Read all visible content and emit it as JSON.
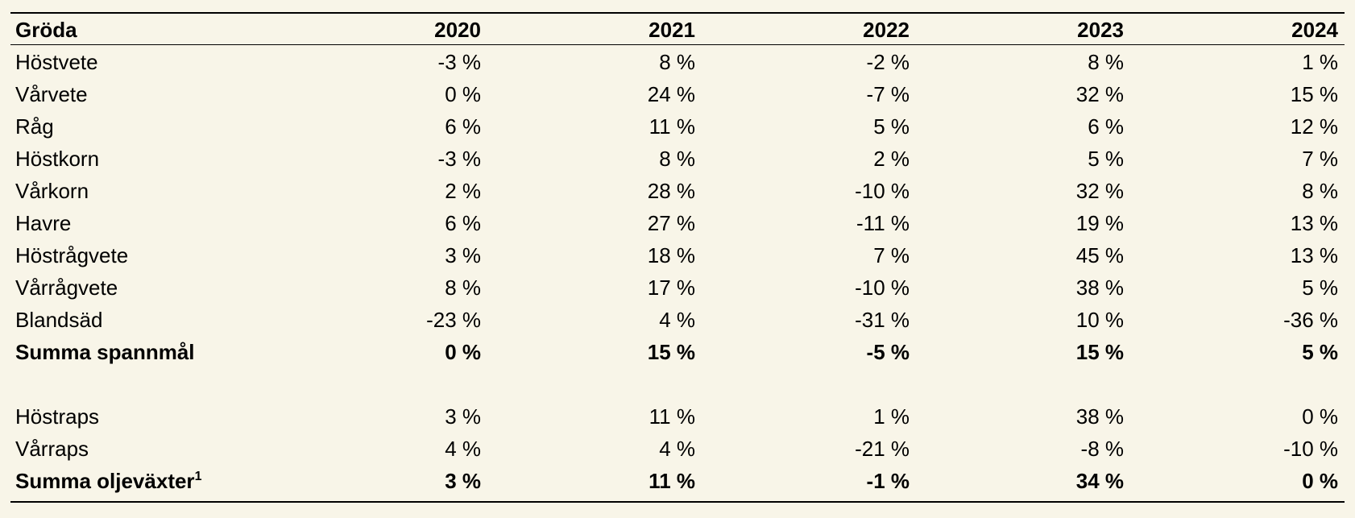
{
  "table": {
    "header": [
      "Gröda",
      "2020",
      "2021",
      "2022",
      "2023",
      "2024"
    ],
    "groups": [
      {
        "rows": [
          {
            "crop": "Höstvete",
            "values": [
              "-3 %",
              "8 %",
              "-2 %",
              "8 %",
              "1 %"
            ]
          },
          {
            "crop": "Vårvete",
            "values": [
              "0 %",
              "24 %",
              "-7 %",
              "32 %",
              "15 %"
            ]
          },
          {
            "crop": "Råg",
            "values": [
              "6 %",
              "11 %",
              "5 %",
              "6 %",
              "12 %"
            ]
          },
          {
            "crop": "Höstkorn",
            "values": [
              "-3 %",
              "8 %",
              "2 %",
              "5 %",
              "7 %"
            ]
          },
          {
            "crop": "Vårkorn",
            "values": [
              "2 %",
              "28 %",
              "-10 %",
              "32 %",
              "8 %"
            ]
          },
          {
            "crop": "Havre",
            "values": [
              "6 %",
              "27 %",
              "-11 %",
              "19 %",
              "13 %"
            ]
          },
          {
            "crop": "Höstrågvete",
            "values": [
              "3 %",
              "18 %",
              "7 %",
              "45 %",
              "13 %"
            ]
          },
          {
            "crop": "Vårrågvete",
            "values": [
              "8 %",
              "17 %",
              "-10 %",
              "38 %",
              "5 %"
            ]
          },
          {
            "crop": "Blandsäd",
            "values": [
              "-23 %",
              "4 %",
              "-31 %",
              "10 %",
              "-36 %"
            ]
          }
        ],
        "total": {
          "crop": "Summa spannmål",
          "values": [
            "0 %",
            "15 %",
            "-5 %",
            "15 %",
            "5 %"
          ]
        }
      },
      {
        "rows": [
          {
            "crop": "Höstraps",
            "values": [
              "3 %",
              "11 %",
              "1 %",
              "38 %",
              "0 %"
            ]
          },
          {
            "crop": "Vårraps",
            "values": [
              "4 %",
              "4 %",
              "-21 %",
              "-8 %",
              "-10 %"
            ]
          }
        ],
        "total": {
          "crop": "Summa oljeväxter",
          "note": "1",
          "values": [
            "3 %",
            "11 %",
            "-1 %",
            "34 %",
            "0 %"
          ]
        }
      }
    ]
  }
}
